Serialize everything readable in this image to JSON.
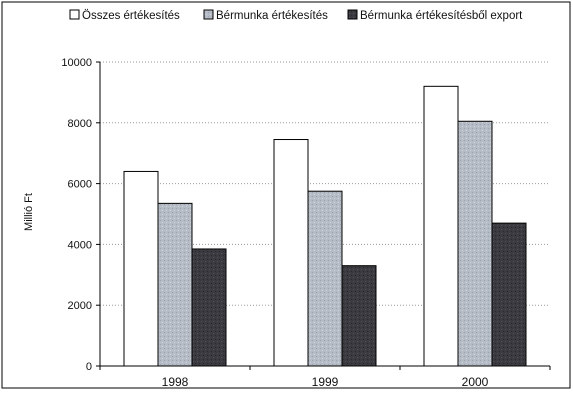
{
  "chart_data": {
    "type": "bar",
    "title": "",
    "xlabel": "",
    "ylabel": "Millió Ft",
    "categories": [
      "1998",
      "1999",
      "2000"
    ],
    "ylim": [
      0,
      10000
    ],
    "yticks": [
      0,
      2000,
      4000,
      6000,
      8000,
      10000
    ],
    "grid": true,
    "legend_position": "top",
    "series": [
      {
        "name": "Összes értékesítés",
        "values": [
          6400,
          7450,
          9200
        ],
        "color": "#ffffff"
      },
      {
        "name": "Bérmunka értékesítés",
        "values": [
          5350,
          5750,
          8050
        ],
        "color": "#b9c0c9"
      },
      {
        "name": "Bérmunka értékesítésből export",
        "values": [
          3850,
          3300,
          4700
        ],
        "color": "#3e3e44"
      }
    ]
  }
}
